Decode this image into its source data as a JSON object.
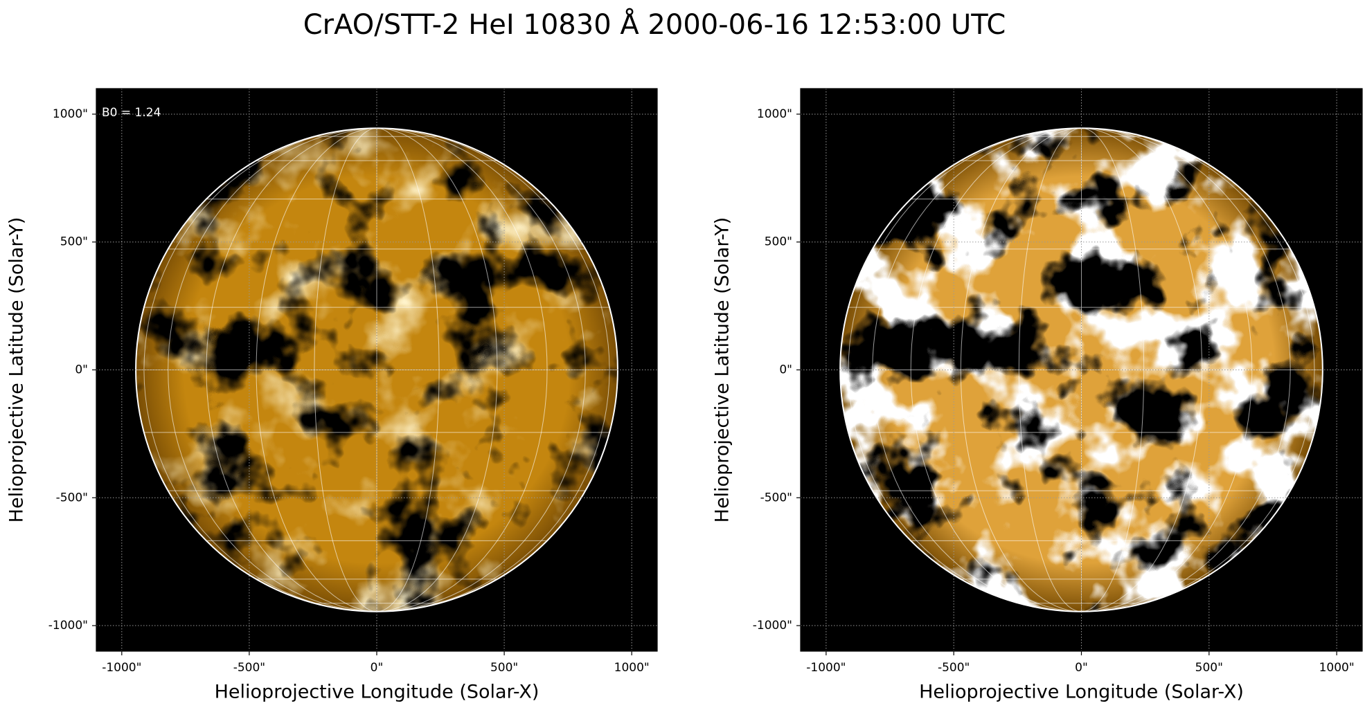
{
  "title": "CrAO/STT-2 HeI 10830 Å 2000-06-16 12:53:00 UTC",
  "chart_data": [
    {
      "type": "image",
      "annotation": "B0 = 1.24",
      "color": "#c4860f",
      "solar_radius": 945,
      "xlabel": "Helioprojective Longitude (Solar-X)",
      "ylabel": "Helioprojective Latitude (Solar-Y)",
      "xlim": [
        -1100,
        1100
      ],
      "ylim": [
        -1100,
        1100
      ],
      "grid": true,
      "xticks": [
        {
          "value": -1000,
          "label": "-1000\""
        },
        {
          "value": -500,
          "label": "-500\""
        },
        {
          "value": 0,
          "label": "0\""
        },
        {
          "value": 500,
          "label": "500\""
        },
        {
          "value": 1000,
          "label": "1000\""
        }
      ],
      "yticks": [
        {
          "value": -1000,
          "label": "-1000\""
        },
        {
          "value": -500,
          "label": "-500\""
        },
        {
          "value": 0,
          "label": "0\""
        },
        {
          "value": 500,
          "label": "500\""
        },
        {
          "value": 1000,
          "label": "1000\""
        }
      ]
    },
    {
      "type": "image",
      "color": "#dfa23a",
      "solar_radius": 945,
      "xlabel": "Helioprojective Longitude (Solar-X)",
      "ylabel": "Helioprojective Latitude (Solar-Y)",
      "xlim": [
        -1100,
        1100
      ],
      "ylim": [
        -1100,
        1100
      ],
      "grid": true,
      "xticks": [
        {
          "value": -1000,
          "label": "-1000\""
        },
        {
          "value": -500,
          "label": "-500\""
        },
        {
          "value": 0,
          "label": "0\""
        },
        {
          "value": 500,
          "label": "500\""
        },
        {
          "value": 1000,
          "label": "1000\""
        }
      ],
      "yticks": [
        {
          "value": -1000,
          "label": "-1000\""
        },
        {
          "value": -500,
          "label": "-500\""
        },
        {
          "value": 0,
          "label": "0\""
        },
        {
          "value": 500,
          "label": "500\""
        },
        {
          "value": 1000,
          "label": "1000\""
        }
      ]
    }
  ]
}
